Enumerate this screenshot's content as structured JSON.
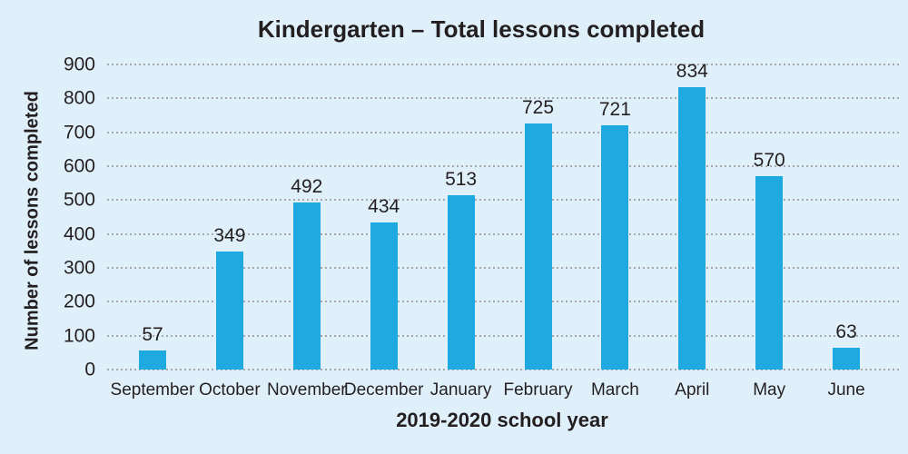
{
  "chart_data": {
    "type": "bar",
    "title": "Kindergarten – Total lessons completed",
    "xlabel": "2019-2020 school year",
    "ylabel": "Number of lessons completed",
    "categories": [
      "September",
      "October",
      "November",
      "December",
      "January",
      "February",
      "March",
      "April",
      "May",
      "June"
    ],
    "values": [
      57,
      349,
      492,
      434,
      513,
      725,
      721,
      834,
      570,
      63
    ],
    "ylim": [
      0,
      900
    ],
    "yticks": [
      0,
      100,
      200,
      300,
      400,
      500,
      600,
      700,
      800,
      900
    ],
    "grid": "horizontal-dotted",
    "legend": "none",
    "bar_color": "#1FA9E1",
    "background_color": "#E0F0FB",
    "text_color": "#231F20",
    "grid_color": "#A6A8AB"
  }
}
